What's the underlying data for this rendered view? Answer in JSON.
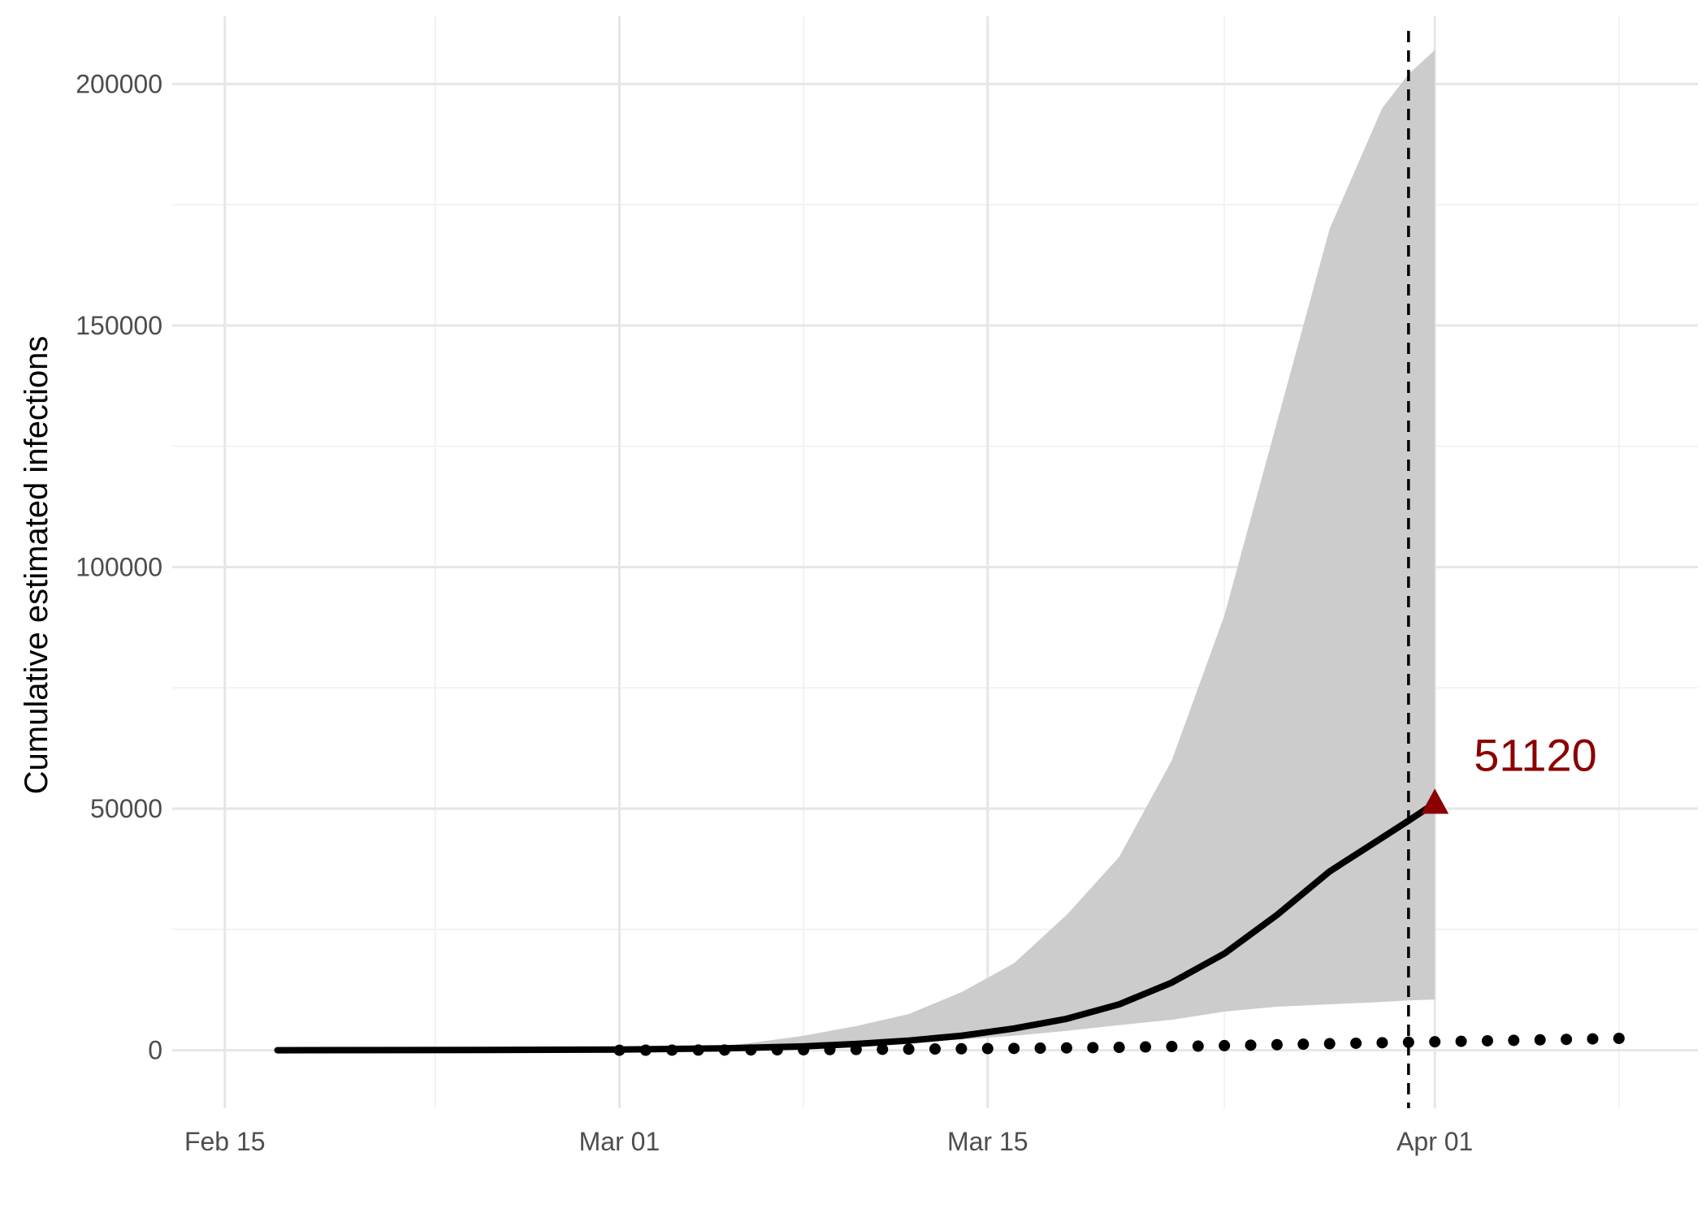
{
  "chart_data": {
    "type": "line",
    "title": "",
    "xlabel": "",
    "ylabel": "Cumulative estimated infections",
    "x_axis": {
      "type": "date",
      "range": [
        "2020-02-13",
        "2020-04-11"
      ],
      "ticks": [
        "2020-02-15",
        "2020-03-01",
        "2020-03-15",
        "2020-04-01"
      ],
      "tick_labels": [
        "Feb 15",
        "Mar 01",
        "Mar 15",
        "Apr 01"
      ],
      "minor_ticks": [
        "2020-02-23",
        "2020-03-08",
        "2020-03-24",
        "2020-04-08"
      ]
    },
    "y_axis": {
      "range": [
        -12000,
        214000
      ],
      "ticks": [
        0,
        50000,
        100000,
        150000,
        200000
      ],
      "tick_labels": [
        "0",
        "50000",
        "100000",
        "150000",
        "200000"
      ],
      "minor_ticks": [
        25000,
        75000,
        125000,
        175000
      ]
    },
    "grid": true,
    "legend": "none",
    "series": [
      {
        "kind": "ribbon",
        "color": "#cccccc",
        "x": [
          "2020-03-04",
          "2020-03-06",
          "2020-03-08",
          "2020-03-10",
          "2020-03-12",
          "2020-03-14",
          "2020-03-16",
          "2020-03-18",
          "2020-03-20",
          "2020-03-22",
          "2020-03-24",
          "2020-03-26",
          "2020-03-28",
          "2020-03-30",
          "2020-03-31",
          "2020-04-01"
        ],
        "lower": [
          400,
          700,
          1000,
          1300,
          1700,
          2200,
          3000,
          4000,
          5200,
          6300,
          8000,
          9000,
          9500,
          10000,
          10300,
          10500
        ],
        "upper": [
          400,
          1500,
          3000,
          5000,
          7500,
          12000,
          18000,
          28000,
          40000,
          60000,
          90000,
          130000,
          170000,
          195000,
          202000,
          207000
        ]
      },
      {
        "kind": "line",
        "style": "solid",
        "color": "#000000",
        "x": [
          "2020-02-17",
          "2020-02-25",
          "2020-03-01",
          "2020-03-05",
          "2020-03-08",
          "2020-03-10",
          "2020-03-12",
          "2020-03-14",
          "2020-03-16",
          "2020-03-18",
          "2020-03-20",
          "2020-03-22",
          "2020-03-24",
          "2020-03-26",
          "2020-03-28",
          "2020-03-30",
          "2020-03-31",
          "2020-04-01"
        ],
        "y": [
          0,
          50,
          150,
          400,
          800,
          1300,
          2000,
          3000,
          4500,
          6500,
          9500,
          14000,
          20000,
          28000,
          37000,
          44000,
          47500,
          51120
        ]
      },
      {
        "kind": "points",
        "style": "dotted",
        "color": "#000000",
        "x": [
          "2020-03-01",
          "2020-03-02",
          "2020-03-03",
          "2020-03-04",
          "2020-03-05",
          "2020-03-06",
          "2020-03-07",
          "2020-03-08",
          "2020-03-09",
          "2020-03-10",
          "2020-03-11",
          "2020-03-12",
          "2020-03-13",
          "2020-03-14",
          "2020-03-15",
          "2020-03-16",
          "2020-03-17",
          "2020-03-18",
          "2020-03-19",
          "2020-03-20",
          "2020-03-21",
          "2020-03-22",
          "2020-03-23",
          "2020-03-24",
          "2020-03-25",
          "2020-03-26",
          "2020-03-27",
          "2020-03-28",
          "2020-03-29",
          "2020-03-30",
          "2020-03-31",
          "2020-04-01",
          "2020-04-02",
          "2020-04-03",
          "2020-04-04",
          "2020-04-05",
          "2020-04-06",
          "2020-04-07",
          "2020-04-08"
        ],
        "y": [
          0,
          10,
          20,
          30,
          40,
          60,
          80,
          100,
          130,
          160,
          190,
          220,
          260,
          300,
          340,
          380,
          430,
          480,
          540,
          600,
          680,
          760,
          850,
          950,
          1050,
          1150,
          1250,
          1350,
          1450,
          1550,
          1650,
          1750,
          1850,
          1950,
          2050,
          2150,
          2250,
          2350,
          2450
        ]
      }
    ],
    "vline": {
      "x": "2020-03-31",
      "style": "dashed",
      "color": "#000000"
    },
    "annotation": {
      "x": "2020-04-01",
      "y": 51120,
      "marker": "triangle",
      "text": "51120",
      "color": "#8b0000"
    }
  }
}
